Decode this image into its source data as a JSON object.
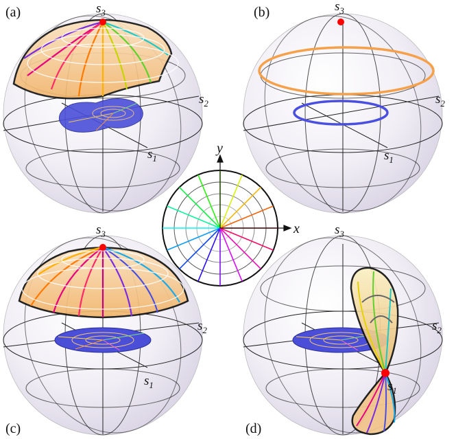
{
  "panels": [
    {
      "id": "a",
      "label": "(a)",
      "axes": {
        "s1": "s",
        "s1_sub": "1",
        "s2": "s",
        "s2_sub": "2",
        "s3": "s",
        "s3_sub": "3"
      }
    },
    {
      "id": "b",
      "label": "(b)",
      "axes": {
        "s1": "s",
        "s1_sub": "1",
        "s2": "s",
        "s2_sub": "2",
        "s3": "s",
        "s3_sub": "3"
      }
    },
    {
      "id": "c",
      "label": "(c)",
      "axes": {
        "s1": "s",
        "s1_sub": "1",
        "s2": "s",
        "s2_sub": "2",
        "s3": "s",
        "s3_sub": "3"
      }
    },
    {
      "id": "d",
      "label": "(d)",
      "axes": {
        "s1": "s",
        "s1_sub": "1",
        "s2": "s",
        "s2_sub": "2",
        "s3": "s",
        "s3_sub": "3"
      }
    }
  ],
  "center_plot": {
    "x_label": "x",
    "y_label": "y"
  },
  "colors": {
    "sphere_fill": "#e8e4ef",
    "grid_line": "#1a1a1a",
    "pole_marker": "#ff0000",
    "orange_cap": "#f6c98a",
    "blue_disk": "#4b4fd8",
    "ring_orange": "#f5a04a",
    "ring_blue": "#4a4fe0"
  }
}
